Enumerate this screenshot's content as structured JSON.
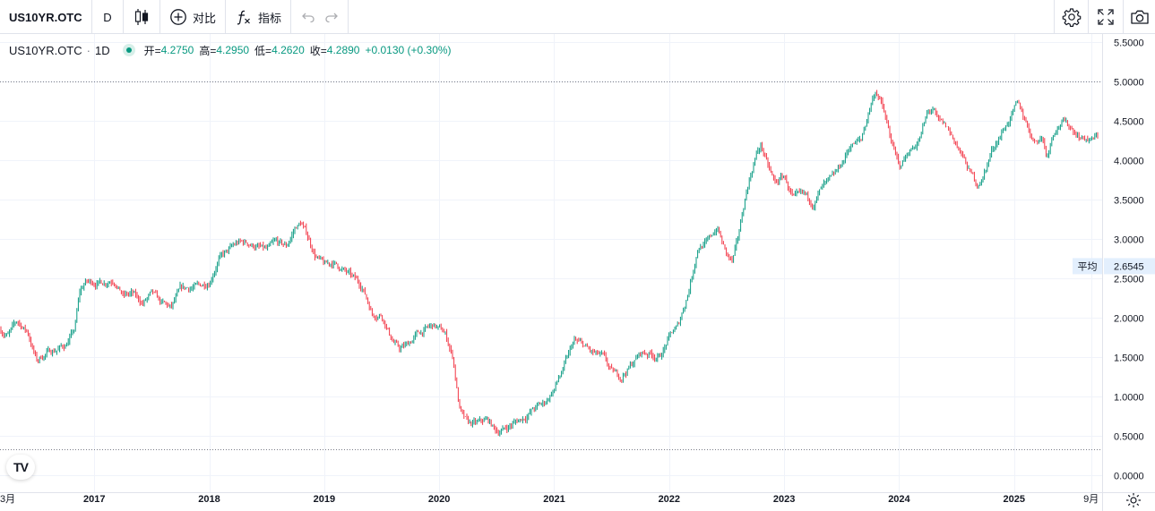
{
  "toolbar": {
    "symbol": "US10YR.OTC",
    "interval": "D",
    "compare_label": "对比",
    "indicators_label": "指标"
  },
  "legend": {
    "symbol": "US10YR.OTC",
    "separator": "·",
    "interval": "1D",
    "open_label": "开=",
    "open": "4.2750",
    "high_label": "高=",
    "high": "4.2950",
    "low_label": "低=",
    "low": "4.2620",
    "close_label": "收=",
    "close": "4.2890",
    "change": "+0.0130 (+0.30%)"
  },
  "colors": {
    "up": "#089981",
    "down": "#f23645",
    "grid": "#f0f3fa",
    "text": "#131722",
    "avg_badge": "#e3effd"
  },
  "chart_data": {
    "type": "candlestick",
    "ylim": [
      0,
      5.5
    ],
    "y_ticks": [
      "0.0000",
      "0.5000",
      "1.0000",
      "1.5000",
      "2.0000",
      "2.5000",
      "3.0000",
      "3.5000",
      "4.0000",
      "4.5000",
      "5.0000",
      "5.5000"
    ],
    "x_ticks": [
      "3月",
      "2017",
      "2018",
      "2019",
      "2020",
      "2021",
      "2022",
      "2023",
      "2024",
      "2025",
      "9月"
    ],
    "x_tick_values": [
      2016.17,
      2017.0,
      2018.0,
      2019.0,
      2020.0,
      2021.0,
      2022.0,
      2023.0,
      2024.0,
      2025.0,
      2025.67
    ],
    "x_range": [
      2016.18,
      2025.75
    ],
    "average_label": "平均",
    "average_value": "2.6545",
    "average_level": 2.6545,
    "range_high_level": 5.0,
    "range_low_level": 0.33,
    "series": [
      {
        "x": [
          2016.18,
          2016.25,
          2016.33,
          2016.42,
          2016.5,
          2016.58,
          2016.67,
          2016.75,
          2016.83,
          2016.87,
          2016.92,
          2017.0,
          2017.08,
          2017.17,
          2017.25,
          2017.33,
          2017.42,
          2017.5,
          2017.58,
          2017.67,
          2017.75,
          2017.83,
          2017.92,
          2018.0,
          2018.08,
          2018.17,
          2018.25,
          2018.33,
          2018.42,
          2018.5,
          2018.58,
          2018.67,
          2018.75,
          2018.8,
          2018.85,
          2018.92,
          2019.0,
          2019.08,
          2019.17,
          2019.25,
          2019.33,
          2019.42,
          2019.5,
          2019.58,
          2019.65,
          2019.72,
          2019.8,
          2019.88,
          2019.95,
          2020.05,
          2020.12,
          2020.17,
          2020.2,
          2020.25,
          2020.33,
          2020.42,
          2020.5,
          2020.58,
          2020.67,
          2020.75,
          2020.83,
          2020.92,
          2021.0,
          2021.08,
          2021.17,
          2021.25,
          2021.33,
          2021.42,
          2021.5,
          2021.58,
          2021.67,
          2021.75,
          2021.83,
          2021.92,
          2022.0,
          2022.08,
          2022.17,
          2022.25,
          2022.33,
          2022.42,
          2022.45,
          2022.5,
          2022.55,
          2022.6,
          2022.67,
          2022.75,
          2022.8,
          2022.85,
          2022.92,
          2023.0,
          2023.08,
          2023.17,
          2023.25,
          2023.33,
          2023.42,
          2023.5,
          2023.58,
          2023.67,
          2023.75,
          2023.8,
          2023.85,
          2023.92,
          2024.0,
          2024.08,
          2024.17,
          2024.25,
          2024.3,
          2024.33,
          2024.42,
          2024.5,
          2024.58,
          2024.67,
          2024.72,
          2024.8,
          2024.87,
          2024.95,
          2025.03,
          2025.1,
          2025.17,
          2025.25,
          2025.28,
          2025.35,
          2025.42,
          2025.5,
          2025.58,
          2025.67,
          2025.73
        ],
        "values": [
          1.85,
          1.78,
          1.95,
          1.82,
          1.45,
          1.55,
          1.6,
          1.65,
          1.85,
          2.3,
          2.45,
          2.45,
          2.45,
          2.5,
          2.28,
          2.3,
          2.18,
          2.3,
          2.18,
          2.12,
          2.35,
          2.38,
          2.4,
          2.46,
          2.75,
          2.85,
          2.95,
          2.95,
          2.9,
          2.85,
          2.95,
          2.9,
          3.15,
          3.2,
          3.05,
          2.8,
          2.66,
          2.7,
          2.6,
          2.5,
          2.4,
          2.05,
          2.05,
          1.75,
          1.6,
          1.65,
          1.78,
          1.85,
          1.9,
          1.8,
          1.5,
          0.9,
          0.75,
          0.65,
          0.65,
          0.7,
          0.55,
          0.6,
          0.68,
          0.75,
          0.85,
          0.92,
          1.1,
          1.35,
          1.7,
          1.65,
          1.55,
          1.5,
          1.3,
          1.25,
          1.4,
          1.55,
          1.55,
          1.5,
          1.75,
          1.9,
          2.35,
          2.9,
          2.95,
          3.15,
          3.0,
          2.8,
          2.7,
          3.0,
          3.6,
          4.05,
          4.2,
          3.95,
          3.7,
          3.8,
          3.5,
          3.55,
          3.45,
          3.65,
          3.75,
          3.95,
          4.2,
          4.25,
          4.7,
          4.9,
          4.7,
          4.3,
          3.9,
          4.1,
          4.25,
          4.6,
          4.65,
          4.5,
          4.4,
          4.2,
          3.95,
          3.7,
          3.75,
          4.1,
          4.3,
          4.5,
          4.7,
          4.5,
          4.25,
          4.3,
          4.05,
          4.4,
          4.5,
          4.4,
          4.3,
          4.25,
          4.3
        ]
      }
    ]
  }
}
